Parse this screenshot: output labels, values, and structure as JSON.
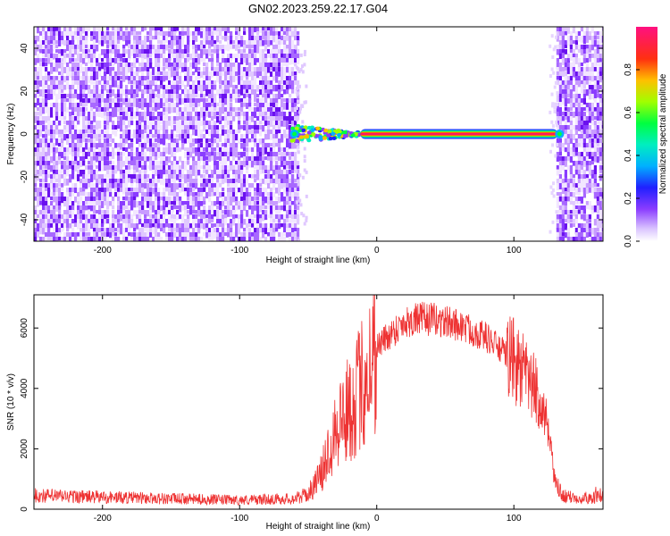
{
  "title": "GN02.2023.259.22.17.G04",
  "chart_data": [
    {
      "type": "heatmap",
      "xlabel": "Height of straight line (km)",
      "ylabel": "Frequency (Hz)",
      "xlim": [
        -250,
        165
      ],
      "ylim": [
        -50,
        50
      ],
      "xticks": [
        -200,
        -100,
        0,
        100
      ],
      "yticks": [
        -40,
        -20,
        0,
        20,
        40
      ],
      "colorbar": {
        "label": "Normalized spectral amplitude",
        "range": [
          0,
          1
        ],
        "ticks": [
          "0.0",
          "0.2",
          "0.4",
          "0.6",
          "0.8"
        ]
      },
      "regions": [
        {
          "name": "noise",
          "x_range": [
            -250,
            -58
          ],
          "amplitude": 0.1
        },
        {
          "name": "onset",
          "x_range": [
            -62,
            -12
          ],
          "frequency_hz": 0,
          "amplitude": 0.35
        },
        {
          "name": "signal",
          "x_range": [
            -12,
            132
          ],
          "frequency_hz": 0,
          "amplitude": 1.0
        },
        {
          "name": "noise",
          "x_range": [
            131,
            165
          ],
          "amplitude": 0.1
        }
      ],
      "grid": false
    },
    {
      "type": "line",
      "xlabel": "Height of straight line (km)",
      "ylabel": "SNR (10 * v/v)",
      "xlim": [
        -250,
        165
      ],
      "ylim": [
        0,
        7100
      ],
      "xticks": [
        -200,
        -100,
        0,
        100
      ],
      "yticks": [
        0,
        2000,
        4000,
        6000
      ],
      "color": "#ee3333",
      "grid": false,
      "series": [
        {
          "x": [
            -250,
            -200,
            -150,
            -100,
            -60,
            -50,
            -40,
            -30,
            -20,
            -10,
            0,
            10,
            20,
            30,
            40,
            50,
            60,
            70,
            80,
            90,
            100,
            110,
            120,
            125,
            130,
            135,
            140,
            150,
            165
          ],
          "values": [
            450,
            400,
            350,
            300,
            350,
            500,
            1200,
            2800,
            3300,
            4200,
            5400,
            5800,
            6200,
            6300,
            6300,
            6200,
            6100,
            5900,
            5700,
            5300,
            4900,
            4300,
            3600,
            2500,
            900,
            450,
            400,
            380,
            400
          ]
        }
      ]
    }
  ]
}
